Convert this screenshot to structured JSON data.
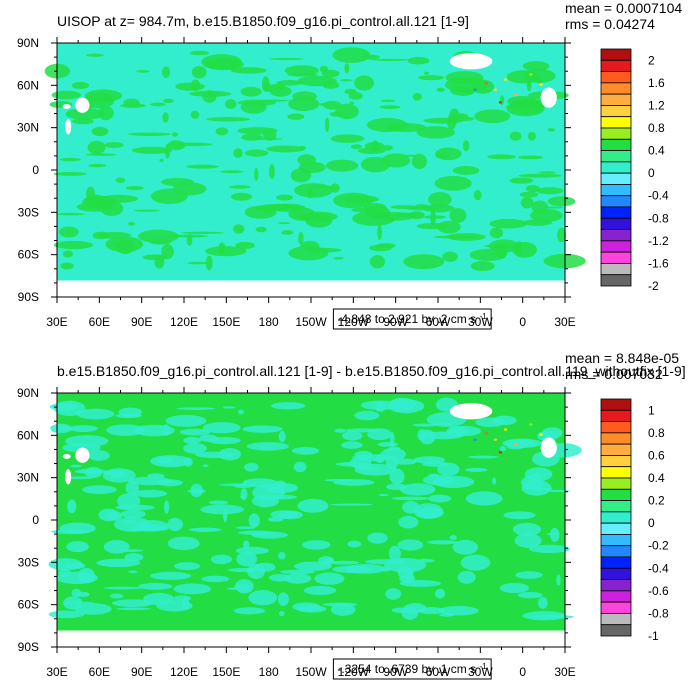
{
  "chart_data": [
    {
      "type": "heatmap",
      "title": "UISOP at z= 984.7m, b.e15.B1850.f09_g16.pi_control.all.121 [1-9]",
      "stats": [
        "mean = 0.0007104",
        "rms = 0.04274"
      ],
      "xticks": [
        "30E",
        "60E",
        "90E",
        "120E",
        "150E",
        "180",
        "150W",
        "120W",
        "90W",
        "60W",
        "30W",
        "0",
        "30E"
      ],
      "yticks": [
        "90N",
        "60N",
        "30N",
        "0",
        "30S",
        "60S",
        "90S"
      ],
      "range_label": "-4.848 to 2.921 by .2 cm s",
      "range_exp": "-1",
      "colorbar": {
        "labels": [
          "2",
          "1.6",
          "1.2",
          "0.8",
          "0.4",
          "0",
          "-0.4",
          "-0.8",
          "-1.2",
          "-1.6",
          "-2"
        ],
        "colors": [
          "#b01010",
          "#e41a1c",
          "#ff5a1f",
          "#ff8c2a",
          "#ffad40",
          "#ffd040",
          "#ffff00",
          "#99ee22",
          "#22dd44",
          "#33ee88",
          "#33eecc",
          "#66eeff",
          "#33bbff",
          "#2288ff",
          "#0022ff",
          "#3311dd",
          "#8822cc",
          "#cc22dd",
          "#ff44dd",
          "#bbbbbb",
          "#666666"
        ]
      },
      "field": {
        "ocean_dominant": "#33eecc",
        "ocean_secondary": "#22dd44",
        "land": "#ffffff"
      }
    },
    {
      "type": "heatmap",
      "title": "b.e15.B1850.f09_g16.pi_control.all.121 [1-9] - b.e15.B1850.f09_g16.pi_control.all.119_withoutfix [1-9]",
      "stats": [
        "mean = 8.848e-05",
        "rms = 0.007032"
      ],
      "xticks": [
        "30E",
        "60E",
        "90E",
        "120E",
        "150E",
        "180",
        "150W",
        "120W",
        "90W",
        "60W",
        "30W",
        "0",
        "30E"
      ],
      "yticks": [
        "90N",
        "60N",
        "30N",
        "0",
        "30S",
        "60S",
        "90S"
      ],
      "range_label": "-.3254 to .6739 by .1 cm s",
      "range_exp": "-1",
      "colorbar": {
        "labels": [
          "1",
          "0.8",
          "0.6",
          "0.4",
          "0.2",
          "0",
          "-0.2",
          "-0.4",
          "-0.6",
          "-0.8",
          "-1"
        ],
        "colors": [
          "#b01010",
          "#e41a1c",
          "#ff5a1f",
          "#ff8c2a",
          "#ffad40",
          "#ffd040",
          "#ffff00",
          "#99ee22",
          "#22dd44",
          "#33ee88",
          "#33eecc",
          "#66eeff",
          "#33bbff",
          "#2288ff",
          "#0022ff",
          "#3311dd",
          "#8822cc",
          "#cc22dd",
          "#ff44dd",
          "#bbbbbb",
          "#666666"
        ]
      },
      "field": {
        "ocean_dominant": "#22dd44",
        "ocean_secondary": "#33eecc",
        "land": "#ffffff"
      }
    }
  ]
}
